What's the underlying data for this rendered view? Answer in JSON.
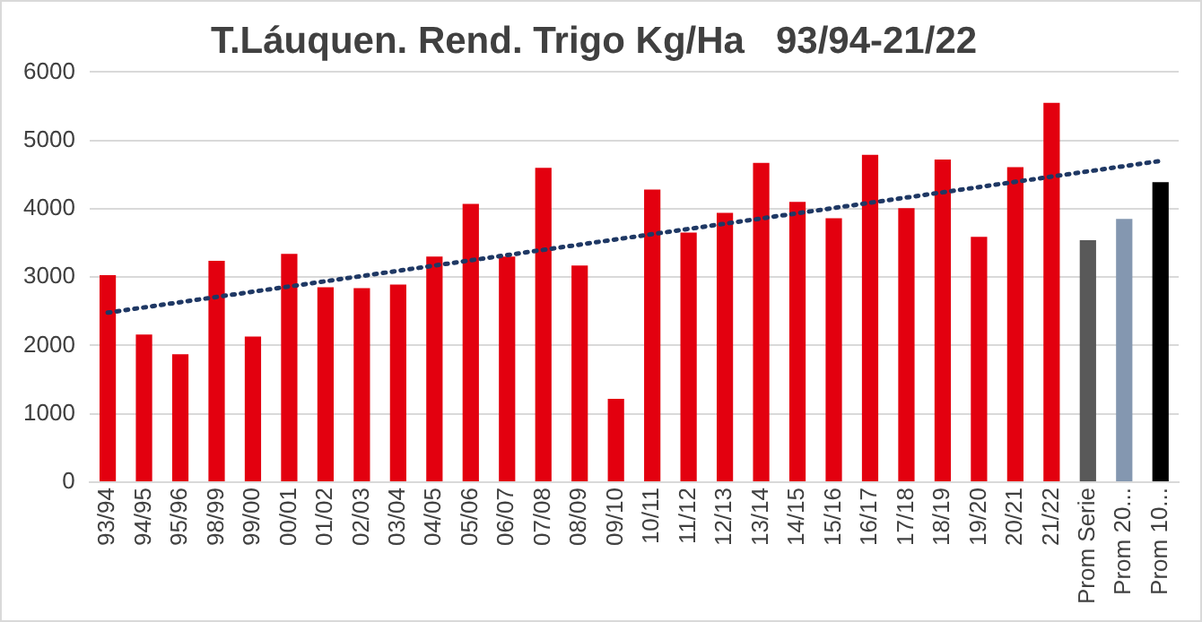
{
  "chart_data": {
    "type": "bar",
    "title": "T.Láuquen. Rend. Trigo Kg/Ha   93/94-21/22",
    "categories": [
      "93/94",
      "94/95",
      "95/96",
      "98/99",
      "99/00",
      "00/01",
      "01/02",
      "02/03",
      "03/04",
      "04/05",
      "05/06",
      "06/07",
      "07/08",
      "08/09",
      "09/10",
      "10/11",
      "11/12",
      "12/13",
      "13/14",
      "14/15",
      "15/16",
      "16/17",
      "17/18",
      "18/19",
      "19/20",
      "20/21",
      "21/22",
      "Prom Serie",
      "Prom 20...",
      "Prom 10..."
    ],
    "series": [
      {
        "values": [
          3030,
          2160,
          1870,
          3240,
          2130,
          3340,
          2850,
          2840,
          2890,
          3300,
          4070,
          3300,
          4600,
          3170,
          1220,
          4280,
          3650,
          3940,
          4670,
          4100,
          3860,
          4790,
          4010,
          4720,
          3590,
          4610,
          5550,
          3540,
          3850,
          4390
        ],
        "colors": [
          "#e3000f",
          "#e3000f",
          "#e3000f",
          "#e3000f",
          "#e3000f",
          "#e3000f",
          "#e3000f",
          "#e3000f",
          "#e3000f",
          "#e3000f",
          "#e3000f",
          "#e3000f",
          "#e3000f",
          "#e3000f",
          "#e3000f",
          "#e3000f",
          "#e3000f",
          "#e3000f",
          "#e3000f",
          "#e3000f",
          "#e3000f",
          "#e3000f",
          "#e3000f",
          "#e3000f",
          "#e3000f",
          "#e3000f",
          "#e3000f",
          "#595959",
          "#8497b0",
          "#000000"
        ]
      },
      {
        "type": "line",
        "x": [
          "93/94",
          "Prom 10..."
        ],
        "values": [
          2480,
          4700
        ],
        "color": "#1f3864",
        "line_style": "dotted",
        "marker": "none"
      }
    ],
    "ylim": [
      0,
      6000
    ],
    "yticks": [
      0,
      1000,
      2000,
      3000,
      4000,
      5000,
      6000
    ],
    "grid": "y",
    "legend": false
  }
}
